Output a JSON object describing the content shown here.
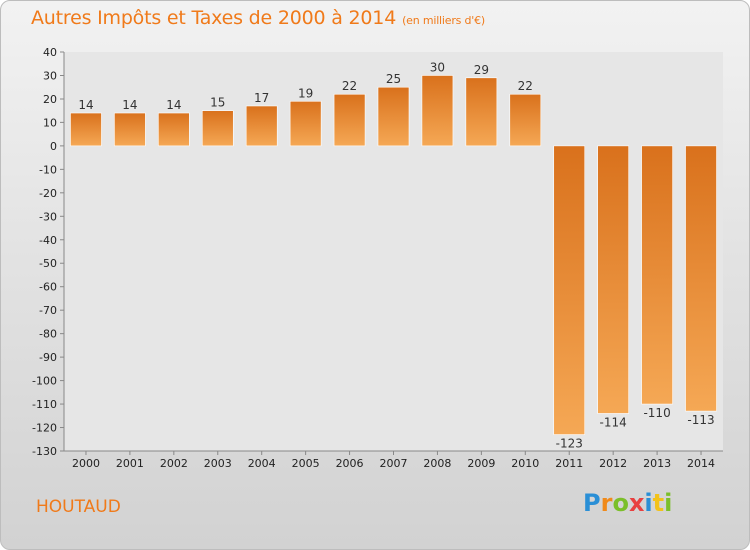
{
  "header": {
    "title": "Autres Impôts et Taxes de 2000 à 2014",
    "unit": "(en milliers d'€)"
  },
  "footer": {
    "commune": "HOUTAUD",
    "brand_letters": [
      {
        "char": "P",
        "color": "#2a8fd6"
      },
      {
        "char": "r",
        "color": "#f08a1a"
      },
      {
        "char": "o",
        "color": "#7bbf2a"
      },
      {
        "char": "x",
        "color": "#e84040"
      },
      {
        "char": "i",
        "color": "#2a8fd6"
      },
      {
        "char": "t",
        "color": "#f2c21a"
      },
      {
        "char": "i",
        "color": "#7bbf2a"
      }
    ]
  },
  "colors": {
    "accent": "#f07a1a",
    "bar_light": "#f5a855",
    "bar_dark": "#d9711c"
  },
  "chart_data": {
    "type": "bar",
    "title": "Autres Impôts et Taxes de 2000 à 2014",
    "subtitle": "(en milliers d'€)",
    "categories": [
      "2000",
      "2001",
      "2002",
      "2003",
      "2004",
      "2005",
      "2006",
      "2007",
      "2008",
      "2009",
      "2010",
      "2011",
      "2012",
      "2013",
      "2014"
    ],
    "values": [
      14,
      14,
      14,
      15,
      17,
      19,
      22,
      25,
      30,
      29,
      22,
      -123,
      -114,
      -110,
      -113
    ],
    "value_labels": [
      "14",
      "14",
      "14",
      "15",
      "17",
      "19",
      "22",
      "25",
      "30",
      "29",
      "22",
      "-123",
      "-114",
      "-110",
      "-113"
    ],
    "ylim": [
      -130,
      40
    ],
    "yticks": [
      40,
      30,
      20,
      10,
      0,
      -10,
      -20,
      -30,
      -40,
      -50,
      -60,
      -70,
      -80,
      -90,
      -100,
      -110,
      -120,
      -130
    ],
    "xlabel": "",
    "ylabel": "",
    "grid": false,
    "legend": "none"
  }
}
